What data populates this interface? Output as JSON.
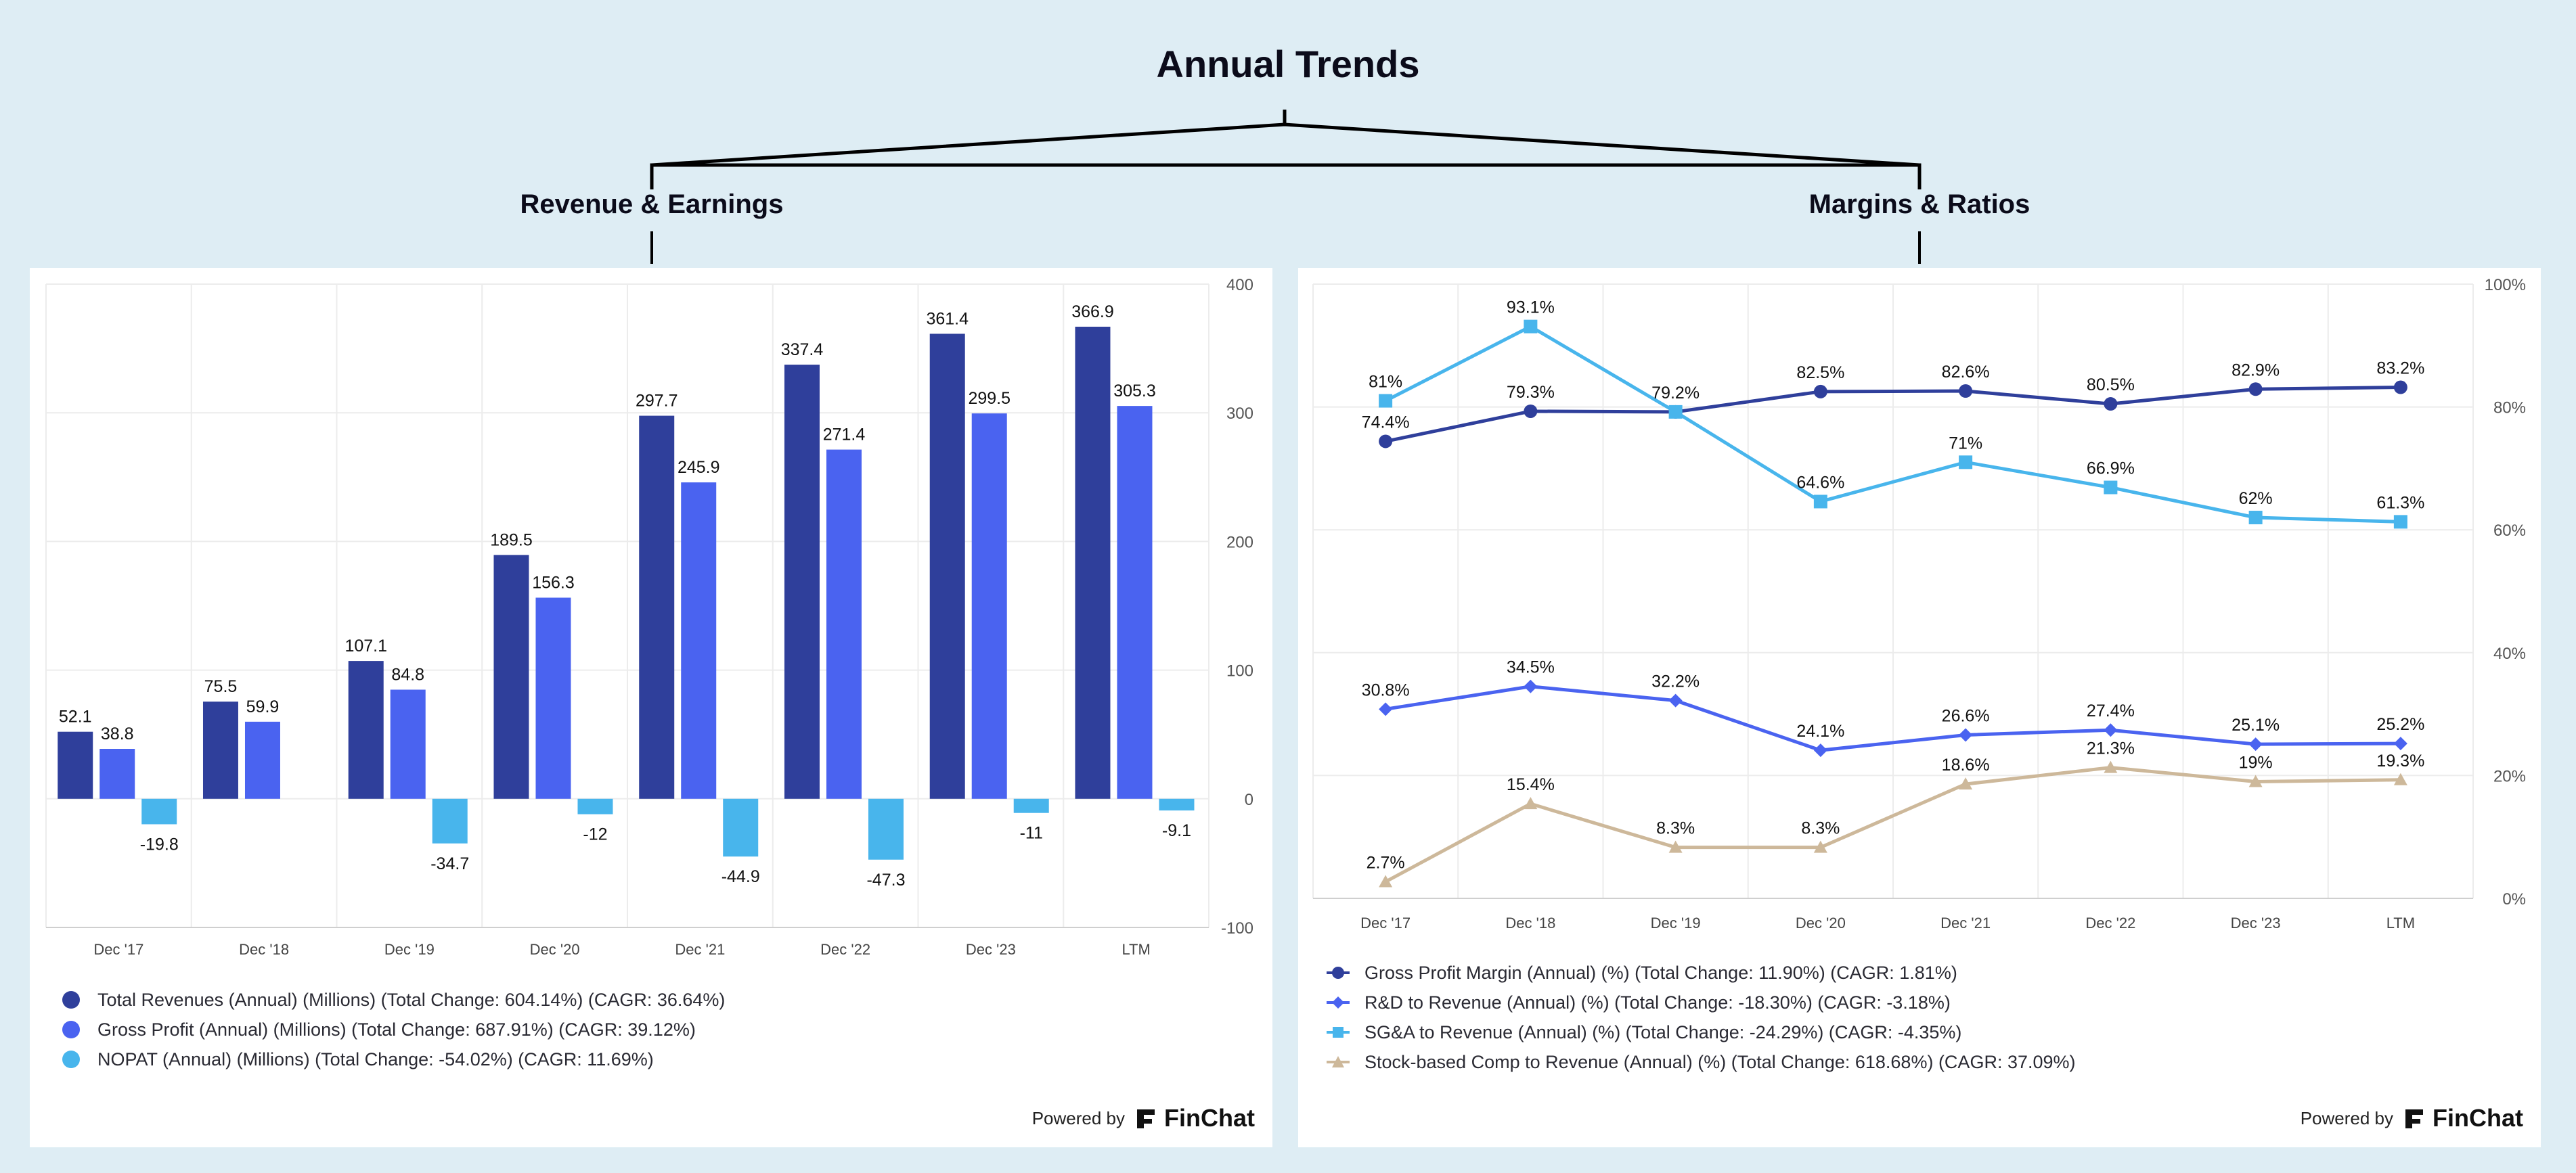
{
  "title": "Annual Trends",
  "sections": {
    "left_title": "Revenue & Earnings",
    "right_title": "Margins & Ratios"
  },
  "powered_by": {
    "label": "Powered by",
    "brand": "FinChat"
  },
  "colors": {
    "background": "#deedf4",
    "navy": "#2f3f9b",
    "blue": "#4a63f0",
    "sky": "#48b5ec",
    "tan": "#cdb89a"
  },
  "chart_data": [
    {
      "type": "bar",
      "title": "Revenue & Earnings",
      "categories": [
        "Dec '17",
        "Dec '18",
        "Dec '19",
        "Dec '20",
        "Dec '21",
        "Dec '22",
        "Dec '23",
        "LTM"
      ],
      "ylim": [
        -100,
        400
      ],
      "yticks": [
        -100,
        0,
        100,
        200,
        300,
        400
      ],
      "ytick_labels": [
        "-100",
        "0",
        "100",
        "200",
        "300",
        "400"
      ],
      "series": [
        {
          "name": "Total Revenues (Annual) (Millions) (Total Change: 604.14%) (CAGR: 36.64%)",
          "color": "#2f3f9b",
          "values": [
            52.1,
            75.5,
            107.1,
            189.5,
            297.7,
            337.4,
            361.4,
            366.9
          ],
          "labels": [
            "52.1",
            "75.5",
            "107.1",
            "189.5",
            "297.7",
            "337.4",
            "361.4",
            "366.9"
          ]
        },
        {
          "name": "Gross Profit (Annual) (Millions) (Total Change: 687.91%) (CAGR: 39.12%)",
          "color": "#4a63f0",
          "values": [
            38.8,
            59.9,
            84.8,
            156.3,
            245.9,
            271.4,
            299.5,
            305.3
          ],
          "labels": [
            "38.8",
            "59.9",
            "84.8",
            "156.3",
            "245.9",
            "271.4",
            "299.5",
            "305.3"
          ]
        },
        {
          "name": "NOPAT (Annual) (Millions) (Total Change: -54.02%) (CAGR: 11.69%)",
          "color": "#48b5ec",
          "values": [
            -19.8,
            0,
            -34.7,
            -12,
            -44.9,
            -47.3,
            -11,
            -9.1
          ],
          "labels": [
            "-19.8",
            "",
            "-34.7",
            "-12",
            "-44.9",
            "-47.3",
            "-11",
            "-9.1"
          ]
        }
      ]
    },
    {
      "type": "line",
      "title": "Margins & Ratios",
      "categories": [
        "Dec '17",
        "Dec '18",
        "Dec '19",
        "Dec '20",
        "Dec '21",
        "Dec '22",
        "Dec '23",
        "LTM"
      ],
      "ylim": [
        0,
        100
      ],
      "yticks": [
        0,
        20,
        40,
        60,
        80,
        100
      ],
      "ytick_labels": [
        "0%",
        "20%",
        "40%",
        "60%",
        "80%",
        "100%"
      ],
      "series": [
        {
          "name": "Gross Profit Margin (Annual) (%) (Total Change: 11.90%) (CAGR: 1.81%)",
          "color": "#2f3f9b",
          "marker": "circle",
          "values": [
            74.4,
            79.3,
            79.2,
            82.5,
            82.6,
            80.5,
            82.9,
            83.2
          ],
          "labels": [
            "74.4%",
            "79.3%",
            "",
            "82.5%",
            "82.6%",
            "80.5%",
            "82.9%",
            "83.2%"
          ]
        },
        {
          "name": "R&D to Revenue (Annual) (%) (Total Change: -18.30%) (CAGR: -3.18%)",
          "color": "#4a63f0",
          "marker": "diamond",
          "values": [
            30.8,
            34.5,
            32.2,
            24.1,
            26.6,
            27.4,
            25.1,
            25.2
          ],
          "labels": [
            "30.8%",
            "34.5%",
            "32.2%",
            "24.1%",
            "26.6%",
            "27.4%",
            "25.1%",
            "25.2%"
          ]
        },
        {
          "name": "SG&A to Revenue (Annual) (%) (Total Change: -24.29%) (CAGR: -4.35%)",
          "color": "#48b5ec",
          "marker": "square",
          "values": [
            81,
            93.1,
            79.2,
            64.6,
            71,
            66.9,
            62,
            61.3
          ],
          "labels": [
            "81%",
            "93.1%",
            "79.2%",
            "64.6%",
            "71%",
            "66.9%",
            "62%",
            "61.3%"
          ]
        },
        {
          "name": "Stock-based Comp to Revenue (Annual) (%) (Total Change: 618.68%) (CAGR: 37.09%)",
          "color": "#cdb89a",
          "marker": "triangle",
          "values": [
            2.7,
            15.4,
            8.3,
            8.3,
            18.6,
            21.3,
            19,
            19.3
          ],
          "labels": [
            "2.7%",
            "15.4%",
            "8.3%",
            "8.3%",
            "18.6%",
            "21.3%",
            "19%",
            "19.3%"
          ]
        }
      ]
    }
  ]
}
